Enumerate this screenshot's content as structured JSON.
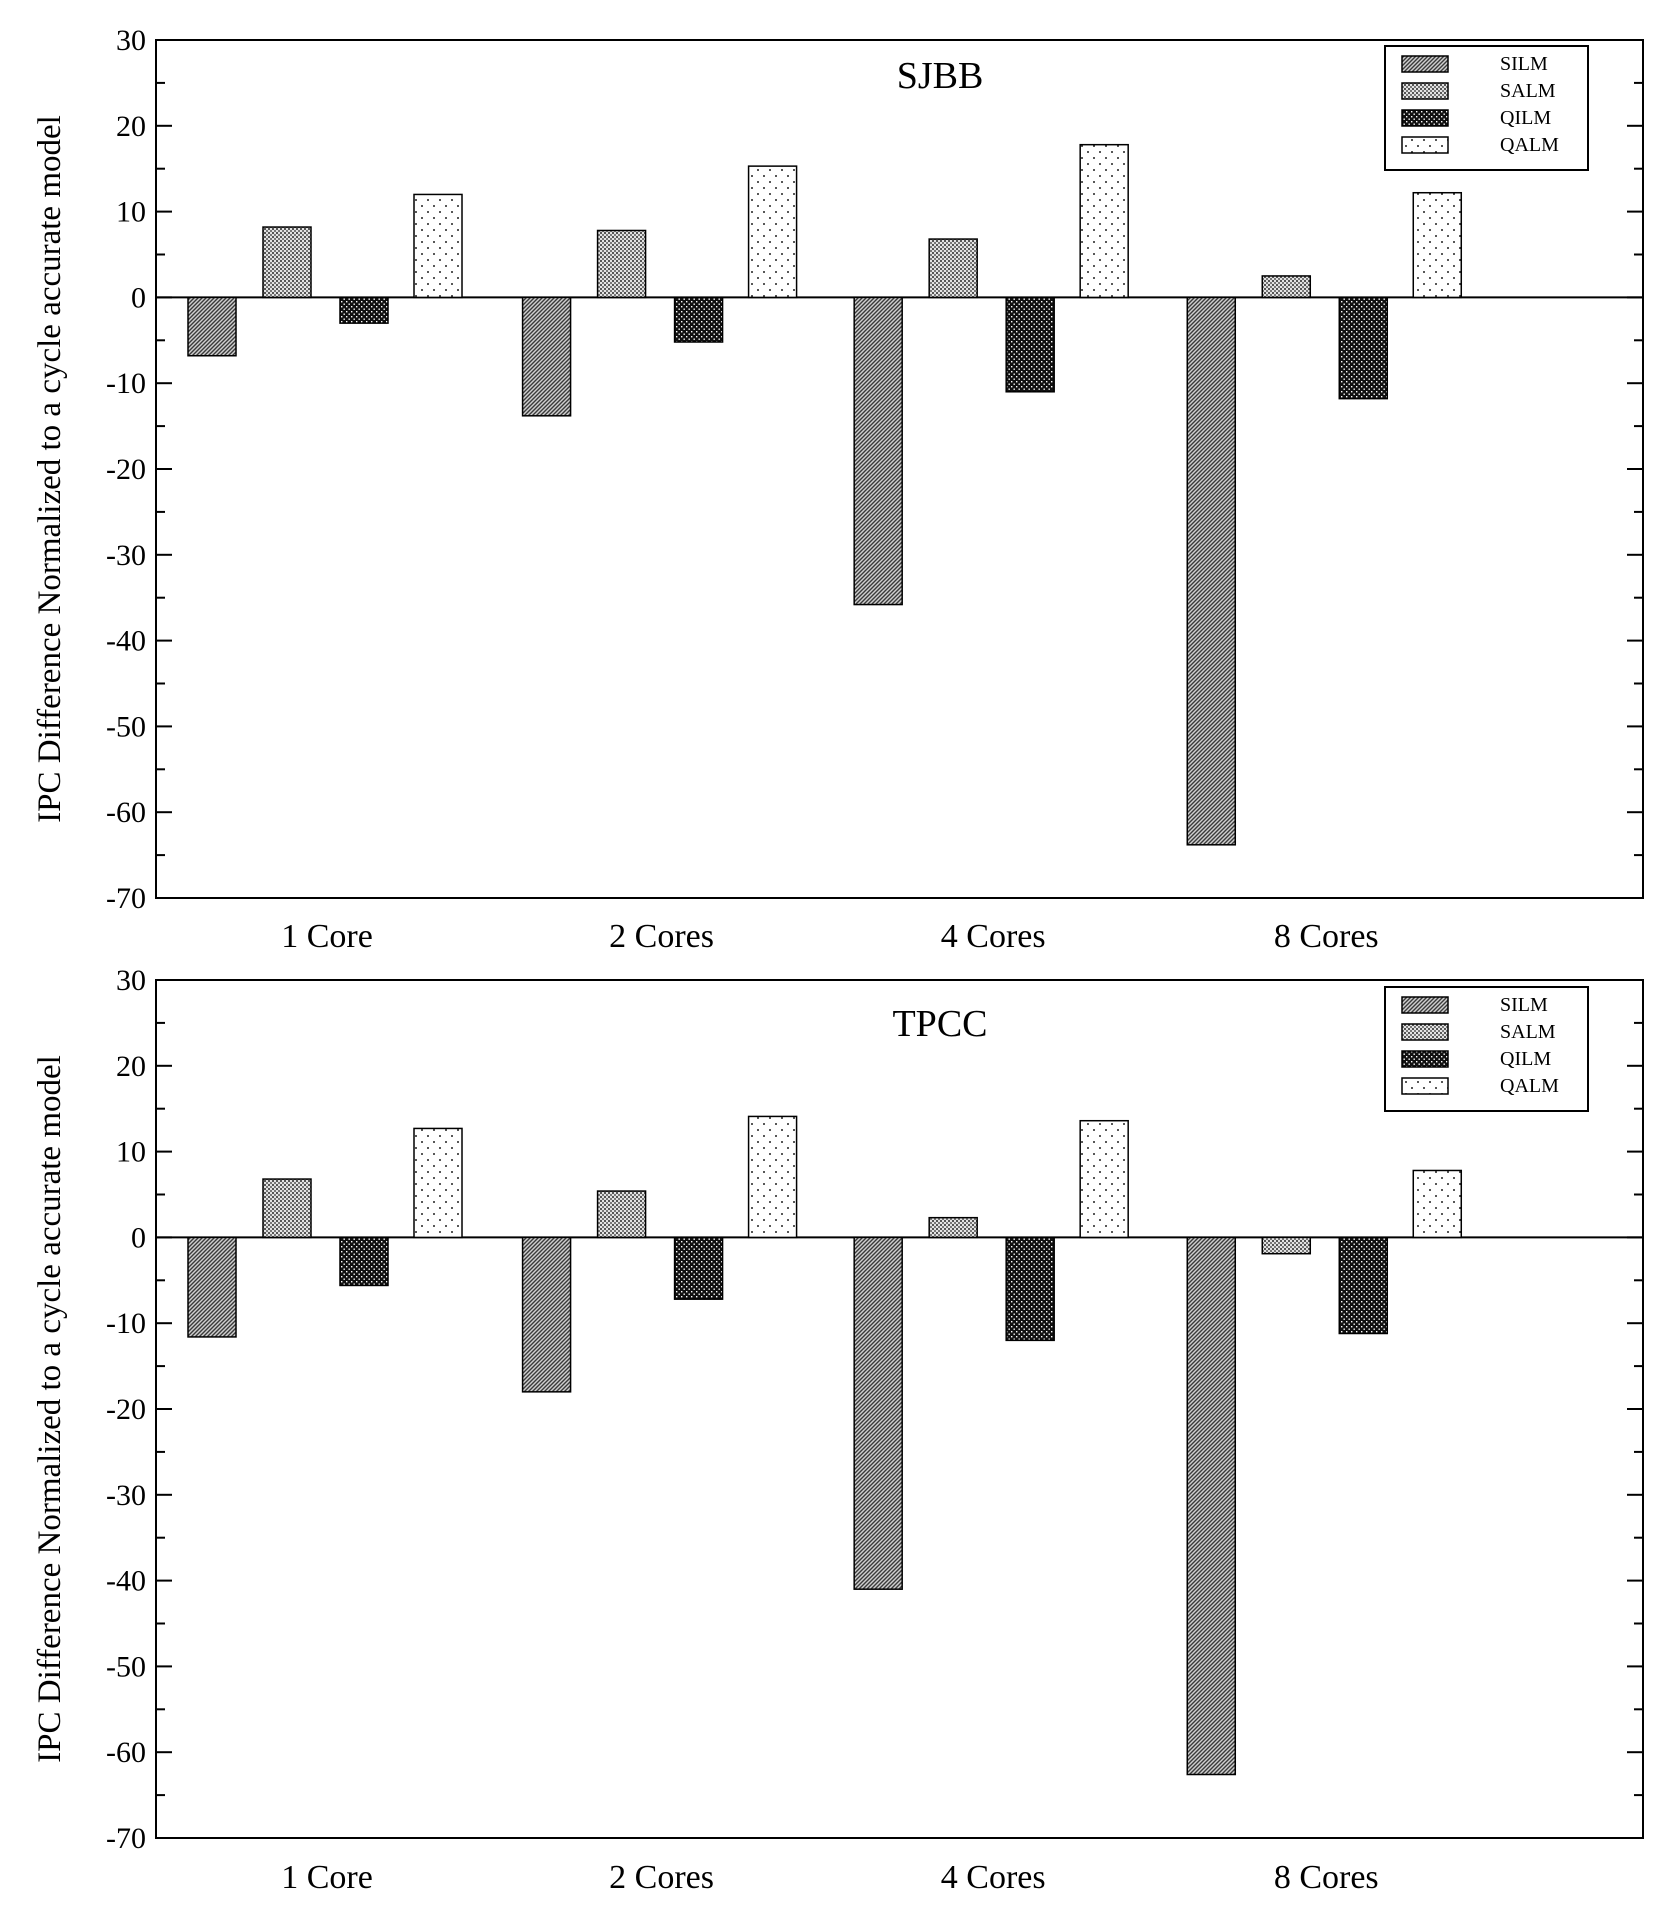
{
  "chart_data": [
    {
      "type": "bar",
      "title": "SJBB",
      "xlabel": "",
      "ylabel": "IPC Difference Normalized to a cycle accurate model",
      "ylim": [
        -70,
        30
      ],
      "yticks": [
        30,
        20,
        10,
        0,
        -10,
        -20,
        -30,
        -40,
        -50,
        -60,
        -70
      ],
      "grid": false,
      "legend_position": "top-right",
      "categories": [
        "1 Core",
        "2 Cores",
        "4 Cores",
        "8 Cores"
      ],
      "series": [
        {
          "name": "SILM",
          "values": [
            -6.8,
            -13.8,
            -35.8,
            -63.8
          ],
          "pattern": "diag-dense"
        },
        {
          "name": "SALM",
          "values": [
            8.2,
            7.8,
            6.8,
            2.5
          ],
          "pattern": "crosshatch"
        },
        {
          "name": "QILM",
          "values": [
            -3.0,
            -5.2,
            -11.0,
            -11.8
          ],
          "pattern": "dark-dots"
        },
        {
          "name": "QALM",
          "values": [
            12.0,
            15.3,
            17.8,
            12.2
          ],
          "pattern": "sparse-dots"
        }
      ]
    },
    {
      "type": "bar",
      "title": "TPCC",
      "xlabel": "",
      "ylabel": "IPC Difference Normalized to a cycle accurate model",
      "ylim": [
        -70,
        30
      ],
      "yticks": [
        30,
        20,
        10,
        0,
        -10,
        -20,
        -30,
        -40,
        -50,
        -60,
        -70
      ],
      "grid": false,
      "legend_position": "top-right",
      "categories": [
        "1 Core",
        "2 Cores",
        "4 Cores",
        "8 Cores"
      ],
      "series": [
        {
          "name": "SILM",
          "values": [
            -11.6,
            -18.0,
            -41.0,
            -62.6
          ],
          "pattern": "diag-dense"
        },
        {
          "name": "SALM",
          "values": [
            6.8,
            5.4,
            2.3,
            -1.9
          ],
          "pattern": "crosshatch"
        },
        {
          "name": "QILM",
          "values": [
            -5.6,
            -7.2,
            -12.0,
            -11.2
          ],
          "pattern": "dark-dots"
        },
        {
          "name": "QALM",
          "values": [
            12.7,
            14.1,
            13.6,
            7.8
          ],
          "pattern": "sparse-dots"
        }
      ]
    }
  ]
}
